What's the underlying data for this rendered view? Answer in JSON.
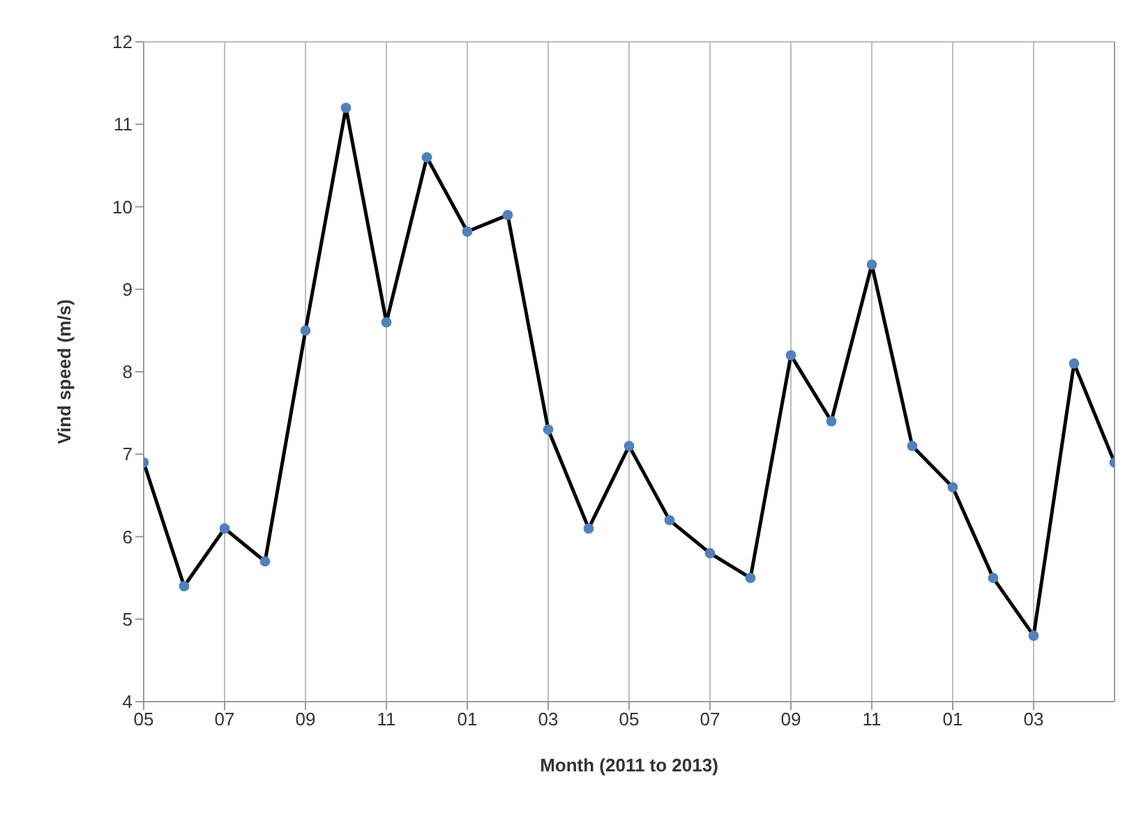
{
  "chart_data": {
    "type": "line",
    "xlabel": "Month (2011 to 2013)",
    "ylabel": "Vind speed (m/s)",
    "categories": [
      "05",
      null,
      "07",
      null,
      "09",
      null,
      "11",
      null,
      "01",
      null,
      "03",
      null,
      "05",
      null,
      "07",
      null,
      "09",
      null,
      "11",
      null,
      "01",
      null,
      "03",
      null,
      null
    ],
    "series": [
      {
        "color": "#000000",
        "colors": [
          "#4f81bd",
          "#4f81bd",
          "#4f81bd",
          "#4f81bd",
          "#4f81bd",
          "#4f81bd",
          "#4f81bd",
          "#4f81bd",
          "#4f81bd",
          "#4f81bd",
          "#4f81bd",
          "#4f81bd",
          "#4f81bd",
          "#4f81bd",
          "#4f81bd",
          "#4f81bd",
          "#4f81bd",
          "#4f81bd",
          "#4f81bd",
          "#4f81bd",
          "#4f81bd",
          "#4f81bd",
          "#4f81bd",
          "#4f81bd",
          "#4f81bd"
        ],
        "values": [
          6.9,
          5.4,
          6.1,
          5.7,
          8.5,
          11.2,
          8.6,
          10.6,
          9.7,
          9.9,
          7.3,
          6.1,
          7.1,
          6.2,
          5.8,
          5.5,
          8.2,
          7.4,
          9.3,
          7.1,
          6.6,
          5.5,
          4.8,
          8.1,
          6.9
        ]
      }
    ],
    "ylim": [
      4,
      12
    ],
    "yticks": [
      4,
      5,
      6,
      7,
      8,
      9,
      10,
      11,
      12
    ],
    "grid": true,
    "legend": false,
    "marker": "circle",
    "line_style": "solid"
  }
}
